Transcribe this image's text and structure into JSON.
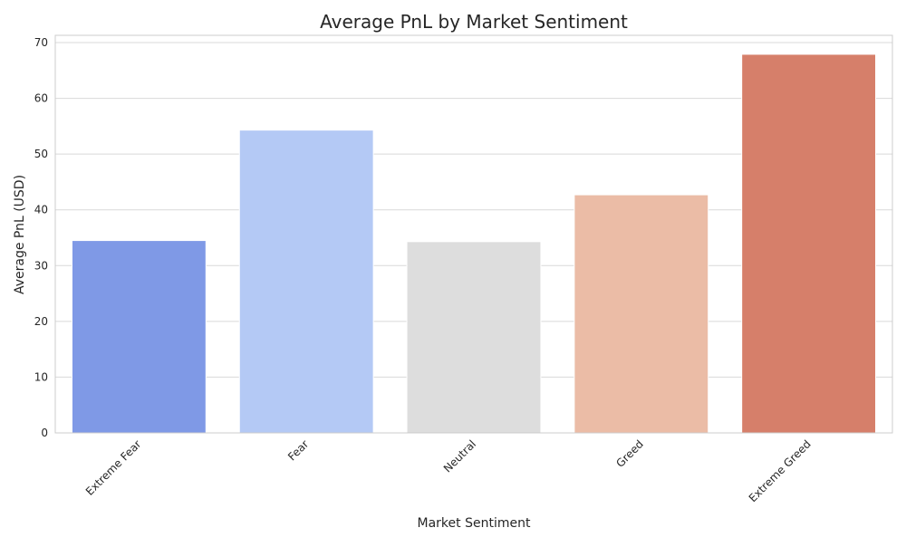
{
  "chart_data": {
    "type": "bar",
    "title": "Average PnL by Market Sentiment",
    "xlabel": "Market Sentiment",
    "ylabel": "Average PnL (USD)",
    "categories": [
      "Extreme Fear",
      "Fear",
      "Neutral",
      "Greed",
      "Extreme Greed"
    ],
    "values": [
      34.5,
      54.3,
      34.3,
      42.7,
      67.9
    ],
    "colors": [
      "#7f99e6",
      "#b4c9f5",
      "#dddddd",
      "#ebbca6",
      "#d67f6a"
    ],
    "ylim": [
      0,
      71.3
    ],
    "yticks": [
      0,
      10,
      20,
      30,
      40,
      50,
      60,
      70
    ],
    "grid": true,
    "legend": "none"
  }
}
